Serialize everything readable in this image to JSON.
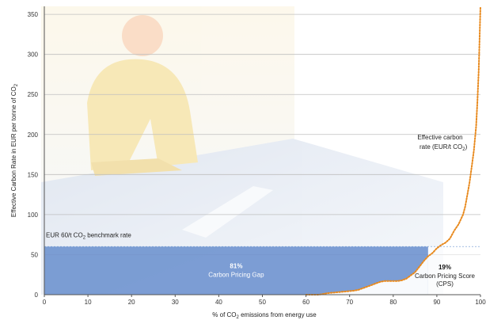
{
  "chart_data": {
    "type": "line",
    "xlabel_parts": [
      "% of CO",
      "2",
      " emissions from energy use"
    ],
    "ylabel_parts": [
      "Effective Carbon Rate in EUR per tonne of CO",
      "2"
    ],
    "xlim": [
      0,
      100
    ],
    "ylim": [
      0,
      360
    ],
    "x_ticks": [
      "0",
      "10",
      "20",
      "30",
      "40",
      "50",
      "60",
      "70",
      "80",
      "90",
      "100"
    ],
    "y_ticks": [
      "0",
      "50",
      "100",
      "150",
      "200",
      "250",
      "300",
      "350"
    ],
    "grid": true,
    "benchmark": {
      "value": 60,
      "label_parts": [
        "EUR 60/t CO",
        "2",
        " benchmark rate"
      ]
    },
    "gap": {
      "percent": "81%",
      "label": "Carbon Pricing Gap",
      "x_end": 88
    },
    "score": {
      "percent": "19%",
      "label_line1": "Carbon Pricing Score",
      "label_line2": "(CPS)"
    },
    "series_label": {
      "line1": "Effective carbon",
      "line2_parts": [
        "rate (EUR/t CO",
        "2",
        ")"
      ]
    },
    "series": [
      {
        "color": "#e8891d",
        "x": [
          60,
          63,
          65,
          67,
          69,
          71,
          72,
          73,
          74,
          75,
          76,
          77,
          78,
          79,
          80,
          81,
          82,
          83,
          84,
          85,
          86,
          87,
          88,
          89,
          90,
          91,
          92,
          93,
          94,
          95,
          96,
          96.5,
          97,
          97.5,
          98,
          98.5,
          99,
          99.3,
          99.6,
          99.8,
          100
        ],
        "y": [
          0,
          0,
          2,
          3,
          4,
          5,
          6,
          8,
          10,
          12,
          14,
          16,
          17,
          17,
          17,
          17,
          18,
          20,
          24,
          28,
          35,
          42,
          48,
          52,
          58,
          62,
          65,
          70,
          80,
          88,
          100,
          110,
          125,
          140,
          160,
          180,
          210,
          240,
          280,
          320,
          360
        ]
      }
    ]
  },
  "colors": {
    "gap_fill": "#6f93cf",
    "curve": "#e8891d",
    "grid": "#bfbfbf",
    "benchmark_line": "#7a9fd4"
  }
}
